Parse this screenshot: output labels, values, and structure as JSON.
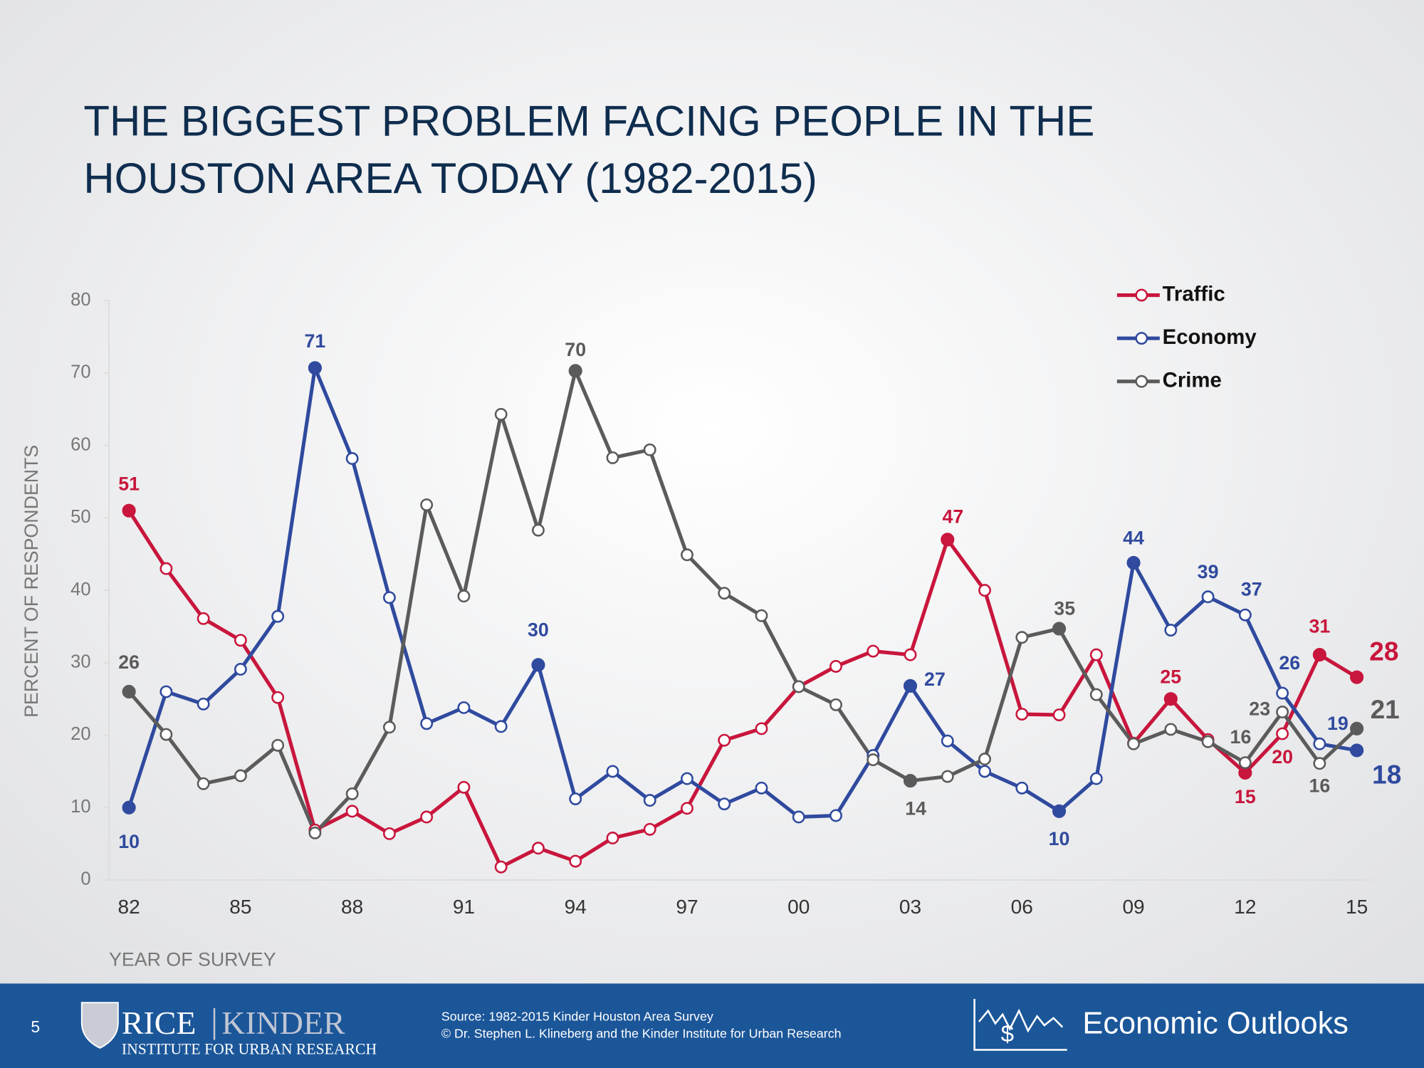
{
  "chart_data": {
    "type": "line",
    "title": [
      "THE BIGGEST PROBLEM FACING PEOPLE IN THE",
      "HOUSTON AREA TODAY (1982-2015)"
    ],
    "y_label": "PERCENT OF RESPONDENTS",
    "x_label": "YEAR OF SURVEY",
    "categories": [
      "82",
      null,
      null,
      "85",
      null,
      null,
      "88",
      null,
      null,
      "91",
      null,
      null,
      "94",
      null,
      null,
      "97",
      null,
      null,
      "00",
      null,
      null,
      "03",
      null,
      null,
      "06",
      null,
      null,
      "09",
      null,
      null,
      "12",
      null,
      null,
      "15"
    ],
    "ylim": [
      0,
      80
    ],
    "yticks": [
      0,
      10,
      20,
      30,
      40,
      50,
      60,
      70,
      80
    ],
    "legend": "top-right",
    "series": [
      {
        "name": "Traffic",
        "color": "#c8163c",
        "values": [
          51.0,
          43.0,
          36.1,
          33.1,
          25.2,
          6.9,
          9.5,
          6.4,
          8.7,
          12.8,
          1.8,
          4.4,
          2.6,
          5.8,
          7.0,
          9.9,
          19.3,
          20.9,
          26.7,
          29.5,
          31.6,
          31.1,
          47.0,
          40.0,
          22.9,
          22.8,
          31.1,
          18.9,
          25.0,
          19.4,
          14.8,
          20.2,
          31.1,
          28.0
        ],
        "value_labels": [
          "51",
          null,
          null,
          null,
          null,
          null,
          null,
          null,
          null,
          null,
          null,
          null,
          null,
          null,
          null,
          null,
          null,
          null,
          null,
          null,
          null,
          null,
          "47",
          null,
          null,
          null,
          null,
          null,
          "25",
          null,
          "15",
          "20",
          "31",
          "28"
        ],
        "filled_markers": [
          0,
          22,
          28,
          30,
          32,
          33
        ]
      },
      {
        "name": "Economy",
        "color": "#2f4a9e",
        "values": [
          10.0,
          26.0,
          24.3,
          29.1,
          36.4,
          70.7,
          58.2,
          39.0,
          21.6,
          23.8,
          21.2,
          29.7,
          11.2,
          15.0,
          11.0,
          14.0,
          10.5,
          12.7,
          8.7,
          8.9,
          17.2,
          26.8,
          19.2,
          15.0,
          12.7,
          9.5,
          14.0,
          43.8,
          34.5,
          39.1,
          36.6,
          25.8,
          18.8,
          17.9
        ],
        "value_labels": [
          "10",
          null,
          null,
          null,
          null,
          "71",
          null,
          null,
          null,
          null,
          null,
          "30",
          null,
          null,
          null,
          null,
          null,
          null,
          null,
          null,
          null,
          "27",
          null,
          null,
          null,
          "10",
          null,
          "44",
          null,
          "39",
          "37",
          "26",
          "19",
          "18"
        ],
        "filled_markers": [
          0,
          5,
          11,
          21,
          25,
          27,
          33
        ]
      },
      {
        "name": "Crime",
        "color": "#5b5b5b",
        "values": [
          26.0,
          20.1,
          13.3,
          14.4,
          18.6,
          6.5,
          11.9,
          21.1,
          51.8,
          39.2,
          64.3,
          48.3,
          70.3,
          58.3,
          59.4,
          44.9,
          39.6,
          36.5,
          26.7,
          24.2,
          16.6,
          13.7,
          14.3,
          16.7,
          33.5,
          34.7,
          25.6,
          18.8,
          20.8,
          19.1,
          16.2,
          23.2,
          16.1,
          20.9
        ],
        "value_labels": [
          "26",
          null,
          null,
          null,
          null,
          null,
          null,
          null,
          null,
          null,
          null,
          null,
          "70",
          null,
          null,
          null,
          null,
          null,
          null,
          null,
          null,
          "14",
          null,
          null,
          null,
          "35",
          null,
          null,
          null,
          null,
          "16",
          "23",
          "16",
          "21"
        ],
        "filled_markers": [
          0,
          12,
          21,
          25,
          33
        ]
      }
    ]
  },
  "footer": {
    "page": "5",
    "logo_main": "RICE",
    "logo_second": "KINDER",
    "logo_sub": "INSTITUTE FOR URBAN RESEARCH",
    "source": [
      "Source: 1982-2015 Kinder Houston Area Survey",
      "© Dr. Stephen L. Klineberg and the Kinder Institute for Urban Research"
    ],
    "brand": "Economic Outlooks"
  }
}
